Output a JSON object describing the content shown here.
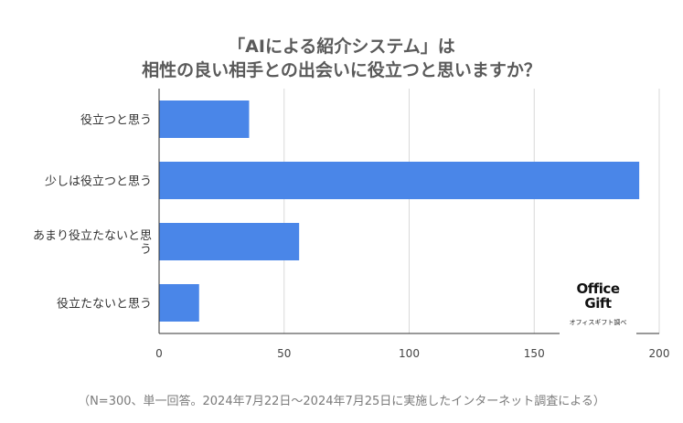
{
  "title_lines": [
    "「AIによる紹介システム」は",
    "相性の良い相手との出会いに役立つと思いますか？"
  ],
  "footer": "（N=300、単一回答。2024年7月22日〜2024年7月25日に実施したインターネット調査による）",
  "logo": {
    "line1": "Office",
    "line2": "Gift",
    "caption": "オフィスギフト調べ"
  },
  "colors": {
    "bar": "#4a86e8",
    "grid": "#d9d9d9",
    "axis": "#333333"
  },
  "chart_data": {
    "type": "bar",
    "orientation": "horizontal",
    "categories": [
      [
        "役立つと思う"
      ],
      [
        "少しは役立つと思う"
      ],
      [
        "あまり役立たないと思",
        "う"
      ],
      [
        "役立たないと思う"
      ]
    ],
    "values": [
      36,
      192,
      56,
      16
    ],
    "xlim": [
      0,
      200
    ],
    "xticks": [
      0,
      50,
      100,
      150,
      200
    ],
    "grid": true,
    "legend": "none"
  }
}
